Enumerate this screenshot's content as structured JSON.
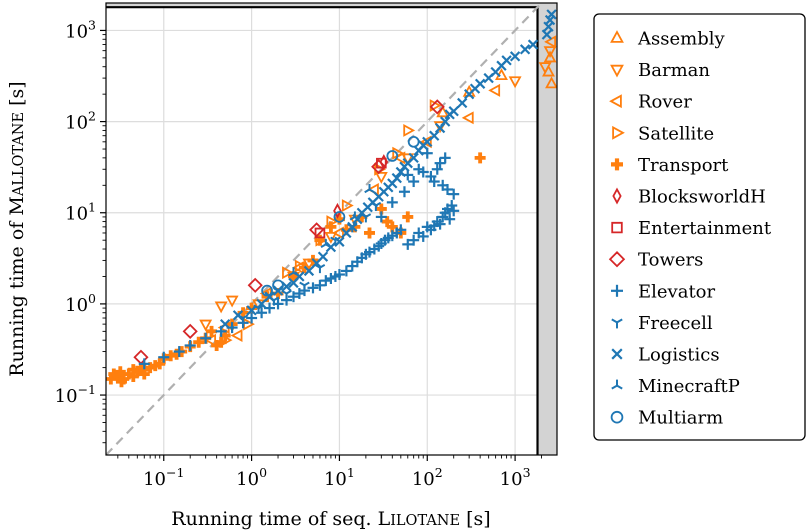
{
  "chart_data": {
    "type": "scatter",
    "xscale": "log",
    "yscale": "log",
    "xlim": [
      0.022,
      3000
    ],
    "ylim": [
      0.022,
      2000
    ],
    "x_ticks": [
      {
        "value": 0.1,
        "base": "10",
        "exp": "−1"
      },
      {
        "value": 1,
        "base": "10",
        "exp": "0"
      },
      {
        "value": 10,
        "base": "10",
        "exp": "1"
      },
      {
        "value": 100,
        "base": "10",
        "exp": "2"
      },
      {
        "value": 1000,
        "base": "10",
        "exp": "3"
      }
    ],
    "y_ticks": [
      {
        "value": 0.1,
        "base": "10",
        "exp": "−1"
      },
      {
        "value": 1,
        "base": "10",
        "exp": "0"
      },
      {
        "value": 10,
        "base": "10",
        "exp": "1"
      },
      {
        "value": 100,
        "base": "10",
        "exp": "2"
      },
      {
        "value": 1000,
        "base": "10",
        "exp": "3"
      }
    ],
    "xlabel": {
      "prefix": "Running time of seq. ",
      "cap": "L",
      "small": "ILOTANE",
      "suffix": " [s]"
    },
    "ylabel": {
      "prefix": "Running time of ",
      "cap": "M",
      "small": "ALLOTANE",
      "suffix": " [s]"
    },
    "timeout": 1800,
    "diagonal": true,
    "grid": true,
    "legend_position": "outside-right",
    "colors": {
      "orange": "#ff7f0e",
      "red": "#d62728",
      "blue": "#1f77b4",
      "timeout_band": "#d3d3d3",
      "diagonal": "#b0b0b0"
    },
    "series": [
      {
        "name": "Assembly",
        "marker": "triangle-up",
        "color": "#ff7f0e",
        "points": [
          [
            2400,
            350
          ],
          [
            2600,
            260
          ],
          [
            2500,
            500
          ],
          [
            700,
            320
          ],
          [
            300,
            210
          ],
          [
            150,
            125
          ]
        ]
      },
      {
        "name": "Barman",
        "marker": "triangle-down",
        "color": "#ff7f0e",
        "points": [
          [
            0.45,
            0.95
          ],
          [
            1.2,
            1.0
          ],
          [
            3.0,
            2.0
          ],
          [
            4.5,
            2.8
          ],
          [
            8.0,
            5.5
          ],
          [
            15,
            8.5
          ],
          [
            30,
            25
          ],
          [
            60,
            40
          ],
          [
            140,
            90
          ],
          [
            1000,
            280
          ],
          [
            2500,
            600
          ],
          [
            2200,
            400
          ],
          [
            0.3,
            0.6
          ],
          [
            0.6,
            1.1
          ]
        ]
      },
      {
        "name": "Rover",
        "marker": "triangle-left",
        "color": "#ff7f0e",
        "points": [
          [
            0.35,
            0.4
          ],
          [
            0.5,
            0.55
          ],
          [
            1.5,
            1.3
          ],
          [
            3.5,
            2.5
          ],
          [
            10,
            6
          ],
          [
            25,
            18
          ],
          [
            50,
            40
          ],
          [
            100,
            60
          ],
          [
            300,
            110
          ],
          [
            600,
            220
          ],
          [
            2600,
            750
          ],
          [
            0.7,
            0.45
          ]
        ]
      },
      {
        "name": "Satellite",
        "marker": "triangle-right",
        "color": "#ff7f0e",
        "points": [
          [
            0.5,
            0.4
          ],
          [
            0.9,
            0.6
          ],
          [
            2.5,
            2.2
          ],
          [
            6.0,
            5.0
          ],
          [
            12,
            12
          ],
          [
            28,
            30
          ],
          [
            45,
            45
          ],
          [
            60,
            80
          ],
          [
            120,
            150
          ],
          [
            8,
            8
          ],
          [
            3.5,
            2.6
          ]
        ]
      },
      {
        "name": "Transport",
        "marker": "plus-thick",
        "color": "#ff7f0e",
        "points": [
          [
            0.025,
            0.15
          ],
          [
            0.027,
            0.17
          ],
          [
            0.03,
            0.16
          ],
          [
            0.032,
            0.18
          ],
          [
            0.035,
            0.15
          ],
          [
            0.04,
            0.17
          ],
          [
            0.045,
            0.19
          ],
          [
            0.05,
            0.18
          ],
          [
            0.055,
            0.2
          ],
          [
            0.06,
            0.19
          ],
          [
            0.07,
            0.2
          ],
          [
            0.08,
            0.21
          ],
          [
            0.09,
            0.22
          ],
          [
            0.1,
            0.25
          ],
          [
            0.12,
            0.27
          ],
          [
            0.14,
            0.28
          ],
          [
            0.16,
            0.3
          ],
          [
            0.2,
            0.34
          ],
          [
            0.25,
            0.38
          ],
          [
            0.3,
            0.42
          ],
          [
            0.35,
            0.5
          ],
          [
            0.4,
            0.35
          ],
          [
            0.45,
            0.38
          ],
          [
            0.5,
            0.45
          ],
          [
            0.6,
            0.6
          ],
          [
            0.8,
            0.8
          ],
          [
            1.0,
            0.9
          ],
          [
            1.5,
            1.2
          ],
          [
            2.0,
            1.3
          ],
          [
            3.0,
            2.0
          ],
          [
            4.0,
            2.5
          ],
          [
            5.0,
            3.0
          ],
          [
            6.0,
            5.0
          ],
          [
            8.0,
            7.0
          ],
          [
            10,
            8.5
          ],
          [
            12,
            6.5
          ],
          [
            15,
            7.0
          ],
          [
            18,
            9.0
          ],
          [
            22,
            6.0
          ],
          [
            30,
            11
          ],
          [
            35,
            8
          ],
          [
            40,
            7
          ],
          [
            50,
            6
          ],
          [
            60,
            9
          ],
          [
            400,
            40
          ],
          [
            0.033,
            0.14
          ],
          [
            0.045,
            0.16
          ],
          [
            0.06,
            0.17
          ]
        ]
      },
      {
        "name": "BlocksworldH",
        "marker": "thin-diamond",
        "color": "#d62728",
        "points": [
          [
            9.5,
            10.5
          ],
          [
            32,
            36
          ]
        ]
      },
      {
        "name": "Entertainment",
        "marker": "square",
        "color": "#d62728",
        "points": [
          [
            6.0,
            6.0
          ],
          [
            30,
            35
          ]
        ]
      },
      {
        "name": "Towers",
        "marker": "diamond",
        "color": "#d62728",
        "points": [
          [
            0.055,
            0.26
          ],
          [
            0.2,
            0.5
          ],
          [
            1.1,
            1.6
          ],
          [
            5.5,
            6.5
          ],
          [
            28,
            32
          ],
          [
            130,
            145
          ]
        ]
      },
      {
        "name": "Elevator",
        "marker": "plus",
        "color": "#1f77b4",
        "points": [
          [
            0.06,
            0.22
          ],
          [
            0.1,
            0.26
          ],
          [
            0.15,
            0.3
          ],
          [
            0.2,
            0.35
          ],
          [
            0.3,
            0.42
          ],
          [
            0.45,
            0.5
          ],
          [
            0.6,
            0.55
          ],
          [
            0.8,
            0.62
          ],
          [
            1.0,
            0.7
          ],
          [
            1.3,
            0.8
          ],
          [
            1.6,
            0.9
          ],
          [
            2.0,
            1.0
          ],
          [
            2.5,
            1.1
          ],
          [
            3.0,
            1.2
          ],
          [
            3.5,
            1.3
          ],
          [
            4.0,
            1.4
          ],
          [
            5.0,
            1.5
          ],
          [
            6.0,
            1.6
          ],
          [
            7.0,
            1.8
          ],
          [
            8.0,
            1.9
          ],
          [
            9.0,
            2.0
          ],
          [
            10,
            2.1
          ],
          [
            12,
            2.3
          ],
          [
            14,
            2.6
          ],
          [
            16,
            2.9
          ],
          [
            18,
            3.2
          ],
          [
            20,
            3.5
          ],
          [
            22,
            3.7
          ],
          [
            25,
            4.0
          ],
          [
            28,
            4.3
          ],
          [
            30,
            4.6
          ],
          [
            33,
            5.0
          ],
          [
            36,
            5.3
          ],
          [
            40,
            5.6
          ],
          [
            45,
            6.0
          ],
          [
            50,
            6.5
          ],
          [
            60,
            4.5
          ],
          [
            70,
            5.0
          ],
          [
            80,
            6.0
          ],
          [
            90,
            5.5
          ],
          [
            100,
            7.0
          ],
          [
            110,
            6.5
          ],
          [
            120,
            7.2
          ],
          [
            130,
            8.0
          ],
          [
            140,
            7.5
          ],
          [
            150,
            9.0
          ],
          [
            160,
            10
          ],
          [
            170,
            11
          ],
          [
            180,
            8.5
          ],
          [
            190,
            12
          ],
          [
            200,
            10.5
          ],
          [
            30,
            9
          ],
          [
            40,
            13
          ],
          [
            55,
            17
          ],
          [
            70,
            22
          ],
          [
            90,
            28
          ],
          [
            110,
            25
          ],
          [
            130,
            30
          ],
          [
            150,
            20
          ],
          [
            170,
            18
          ],
          [
            200,
            16
          ],
          [
            120,
            22
          ],
          [
            140,
            35
          ],
          [
            160,
            40
          ],
          [
            100,
            45
          ],
          [
            80,
            30
          ],
          [
            60,
            26
          ]
        ]
      },
      {
        "name": "Freecell",
        "marker": "tri-down",
        "color": "#1f77b4",
        "points": [
          [
            0.8,
            0.7
          ],
          [
            1.2,
            0.9
          ],
          [
            1.8,
            1.1
          ],
          [
            2.5,
            1.3
          ],
          [
            4,
            1.6
          ],
          [
            6,
            2.5
          ],
          [
            9,
            5
          ],
          [
            14,
            7
          ],
          [
            20,
            9
          ],
          [
            26,
            12
          ]
        ]
      },
      {
        "name": "Logistics",
        "marker": "x",
        "color": "#1f77b4",
        "points": [
          [
            0.5,
            0.6
          ],
          [
            0.7,
            0.75
          ],
          [
            1.0,
            0.85
          ],
          [
            1.3,
            1.0
          ],
          [
            1.6,
            1.2
          ],
          [
            2.0,
            1.4
          ],
          [
            2.5,
            1.55
          ],
          [
            3.0,
            1.7
          ],
          [
            3.5,
            2.0
          ],
          [
            4.5,
            2.3
          ],
          [
            5.5,
            2.8
          ],
          [
            6.5,
            3.3
          ],
          [
            8.0,
            4.2
          ],
          [
            10,
            4.8
          ],
          [
            12,
            6.0
          ],
          [
            14,
            7.0
          ],
          [
            16,
            8.5
          ],
          [
            18,
            10
          ],
          [
            21,
            11.5
          ],
          [
            24,
            13
          ],
          [
            28,
            15
          ],
          [
            32,
            17
          ],
          [
            36,
            19
          ],
          [
            40,
            21
          ],
          [
            45,
            24
          ],
          [
            50,
            28
          ],
          [
            55,
            32
          ],
          [
            60,
            35
          ],
          [
            70,
            40
          ],
          [
            80,
            48
          ],
          [
            90,
            55
          ],
          [
            100,
            60
          ],
          [
            120,
            70
          ],
          [
            140,
            85
          ],
          [
            160,
            100
          ],
          [
            180,
            120
          ],
          [
            200,
            130
          ],
          [
            250,
            160
          ],
          [
            300,
            200
          ],
          [
            350,
            230
          ],
          [
            400,
            260
          ],
          [
            500,
            300
          ],
          [
            600,
            350
          ],
          [
            700,
            410
          ],
          [
            800,
            470
          ],
          [
            1000,
            520
          ],
          [
            1300,
            620
          ],
          [
            1600,
            700
          ],
          [
            2300,
            900
          ],
          [
            2400,
            1100
          ],
          [
            2500,
            1300
          ],
          [
            2600,
            1500
          ]
        ]
      },
      {
        "name": "MinecraftP",
        "marker": "tri-up",
        "color": "#1f77b4",
        "points": [
          [
            3,
            2.2
          ],
          [
            7,
            4.5
          ],
          [
            15,
            9
          ],
          [
            22,
            18
          ]
        ]
      },
      {
        "name": "Multiarm",
        "marker": "circle",
        "color": "#1f77b4",
        "points": [
          [
            1.5,
            1.4
          ],
          [
            2.0,
            1.6
          ],
          [
            40,
            42
          ],
          [
            10,
            9
          ],
          [
            70,
            60
          ]
        ]
      }
    ]
  }
}
